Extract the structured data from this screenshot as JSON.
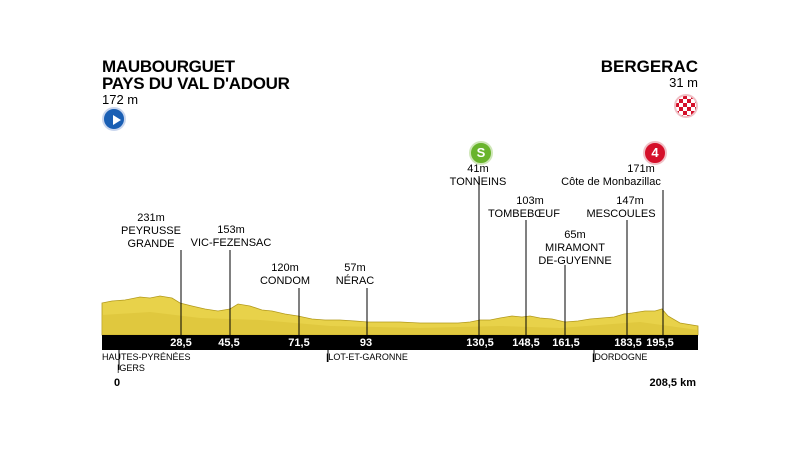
{
  "start": {
    "name_line1": "MAUBOURGUET",
    "name_line2": "PAYS DU VAL D'ADOUR",
    "altitude": "172 m",
    "icon": "start-play-icon",
    "icon_color": "#1a5fb4"
  },
  "finish": {
    "name": "BERGERAC",
    "altitude": "31 m",
    "icon": "finish-flag-icon",
    "icon_color": "#d5102a"
  },
  "sprint_badge": {
    "text": "S",
    "color": "#69b42c"
  },
  "kom_badge": {
    "text": "4",
    "color": "#d5102a"
  },
  "profile_color": "#e8d24a",
  "waypoints": [
    {
      "alt": "231m",
      "line1": "PEYRUSSE",
      "line2": "GRANDE",
      "km": "28,5"
    },
    {
      "alt": "153m",
      "line1": "VIC-FEZENSAC",
      "line2": "",
      "km": "45,5"
    },
    {
      "alt": "120m",
      "line1": "CONDOM",
      "line2": "",
      "km": "71,5"
    },
    {
      "alt": "57m",
      "line1": "NÉRAC",
      "line2": "",
      "km": "93"
    },
    {
      "alt": "41m",
      "line1": "TONNEINS",
      "line2": "",
      "km": "130,5"
    },
    {
      "alt": "103m",
      "line1": "TOMBEBŒUF",
      "line2": "",
      "km": "148,5"
    },
    {
      "alt": "65m",
      "line1": "MIRAMONT",
      "line2": "DE-GUYENNE",
      "km": "161,5"
    },
    {
      "alt": "147m",
      "line1": "MESCOULES",
      "line2": "",
      "km": "183,5"
    },
    {
      "alt": "171m",
      "line1": "Côte de Monbazillac",
      "line2": "",
      "km": "195,5"
    }
  ],
  "regions": {
    "r1_line1": "HAUTES-PYRÉNÉES",
    "r1_line2": "|GERS",
    "r2": "|LOT-ET-GARONNE",
    "r3": "|DORDOGNE"
  },
  "km_start": "0",
  "km_end": "208,5 km"
}
